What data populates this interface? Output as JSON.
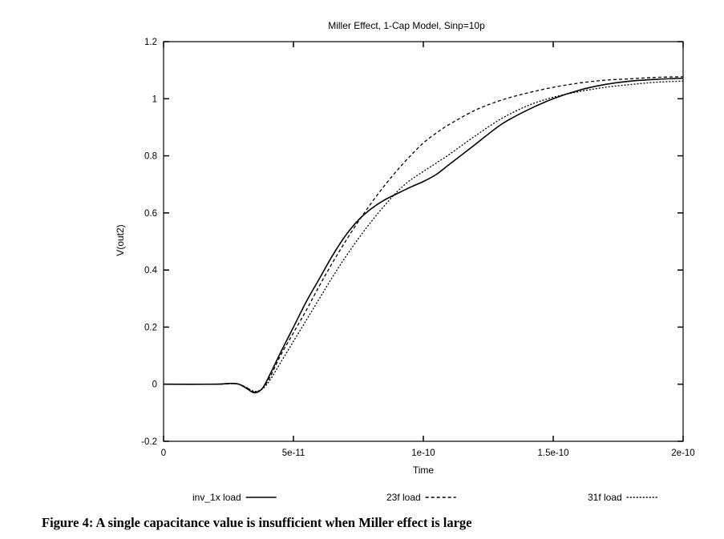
{
  "chart_data": {
    "type": "line",
    "title": "Miller Effect, 1-Cap Model, Sinp=10p",
    "xlabel": "Time",
    "ylabel": "V(out2)",
    "xlim": [
      0,
      2e-10
    ],
    "ylim": [
      -0.2,
      1.2
    ],
    "grid": false,
    "legend_position": "bottom",
    "x_ticks": [
      {
        "value": 0,
        "label": "0"
      },
      {
        "value": 5e-11,
        "label": "5e-11"
      },
      {
        "value": 1e-10,
        "label": "1e-10"
      },
      {
        "value": 1.5e-10,
        "label": "1.5e-10"
      },
      {
        "value": 2e-10,
        "label": "2e-10"
      }
    ],
    "y_ticks": [
      {
        "value": -0.2,
        "label": "-0.2"
      },
      {
        "value": 0,
        "label": "0"
      },
      {
        "value": 0.2,
        "label": "0.2"
      },
      {
        "value": 0.4,
        "label": "0.4"
      },
      {
        "value": 0.6,
        "label": "0.6"
      },
      {
        "value": 0.8,
        "label": "0.8"
      },
      {
        "value": 1.0,
        "label": "1"
      },
      {
        "value": 1.2,
        "label": "1.2"
      }
    ],
    "series": [
      {
        "name": "inv_1x load",
        "dash": "solid",
        "x": [
          0,
          2e-11,
          2.6e-11,
          2.9e-11,
          3.2e-11,
          3.5e-11,
          3.8e-11,
          4.1e-11,
          4.5e-11,
          5e-11,
          5.5e-11,
          6e-11,
          6.5e-11,
          7e-11,
          7.5e-11,
          8e-11,
          8.5e-11,
          9e-11,
          9.5e-11,
          1e-10,
          1.05e-10,
          1.1e-10,
          1.2e-10,
          1.3e-10,
          1.4e-10,
          1.5e-10,
          1.6e-10,
          1.7e-10,
          1.8e-10,
          1.9e-10,
          2e-10
        ],
        "y": [
          0,
          0,
          0.003,
          0,
          -0.015,
          -0.03,
          -0.015,
          0.035,
          0.11,
          0.2,
          0.29,
          0.37,
          0.45,
          0.52,
          0.575,
          0.615,
          0.645,
          0.668,
          0.69,
          0.71,
          0.735,
          0.77,
          0.84,
          0.91,
          0.96,
          1.0,
          1.03,
          1.05,
          1.062,
          1.068,
          1.072
        ]
      },
      {
        "name": "23f load",
        "dash": "dashed",
        "x": [
          0,
          2e-11,
          2.6e-11,
          2.9e-11,
          3.2e-11,
          3.5e-11,
          3.8e-11,
          4.1e-11,
          4.5e-11,
          5e-11,
          5.5e-11,
          6e-11,
          6.5e-11,
          7e-11,
          7.5e-11,
          8e-11,
          8.5e-11,
          9e-11,
          9.5e-11,
          1e-10,
          1.05e-10,
          1.1e-10,
          1.2e-10,
          1.3e-10,
          1.4e-10,
          1.5e-10,
          1.6e-10,
          1.7e-10,
          1.8e-10,
          1.9e-10,
          2e-10
        ],
        "y": [
          0,
          0,
          0.002,
          0,
          -0.012,
          -0.027,
          -0.015,
          0.025,
          0.1,
          0.18,
          0.26,
          0.345,
          0.425,
          0.5,
          0.57,
          0.635,
          0.695,
          0.75,
          0.8,
          0.845,
          0.88,
          0.91,
          0.96,
          0.995,
          1.02,
          1.04,
          1.055,
          1.065,
          1.07,
          1.075,
          1.077
        ]
      },
      {
        "name": "31f load",
        "dash": "dotted",
        "x": [
          0,
          2e-11,
          2.6e-11,
          2.9e-11,
          3.2e-11,
          3.5e-11,
          3.8e-11,
          4.1e-11,
          4.5e-11,
          5e-11,
          5.5e-11,
          6e-11,
          6.5e-11,
          7e-11,
          7.5e-11,
          8e-11,
          8.5e-11,
          9e-11,
          9.5e-11,
          1e-10,
          1.05e-10,
          1.1e-10,
          1.2e-10,
          1.3e-10,
          1.4e-10,
          1.5e-10,
          1.6e-10,
          1.7e-10,
          1.8e-10,
          1.9e-10,
          2e-10
        ],
        "y": [
          0,
          0,
          0.002,
          0,
          -0.012,
          -0.025,
          -0.017,
          0.015,
          0.075,
          0.15,
          0.225,
          0.3,
          0.375,
          0.445,
          0.51,
          0.57,
          0.625,
          0.675,
          0.715,
          0.745,
          0.775,
          0.805,
          0.87,
          0.93,
          0.975,
          1.005,
          1.025,
          1.04,
          1.05,
          1.058,
          1.062
        ]
      }
    ]
  },
  "caption": "Figure 4: A single capacitance value is insufficient when Miller effect is large"
}
